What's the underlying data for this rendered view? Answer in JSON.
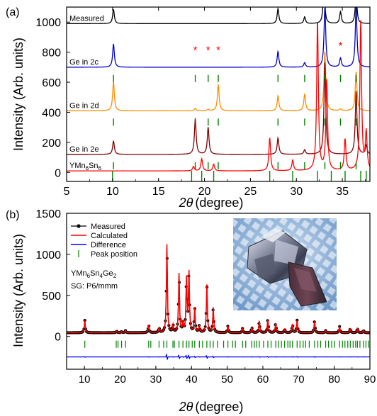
{
  "chart_data": [
    {
      "type": "line",
      "panel_label": "(a)",
      "xlabel": "2θ (degree)",
      "xlabel_symbol": "2θ",
      "xlabel_unit": "(degree)",
      "ylabel": "Intensity (Arb. units)",
      "xlim": [
        5,
        38
      ],
      "ylim": [
        -60,
        1100
      ],
      "x_ticks": [
        5,
        10,
        15,
        20,
        25,
        30,
        35
      ],
      "y_ticks": [
        0,
        200,
        400,
        600,
        800,
        1000
      ],
      "series": [
        {
          "name": "Measured",
          "color": "#000000",
          "offset": 990,
          "peaks": [
            [
              10.1,
              95
            ],
            [
              28.0,
              100
            ],
            [
              30.9,
              45
            ],
            [
              33.0,
              260
            ],
            [
              34.8,
              80
            ],
            [
              36.5,
              200
            ]
          ]
        },
        {
          "name": "Ge in 2c",
          "color": "#0000cc",
          "offset": 700,
          "peaks": [
            [
              10.1,
              155
            ],
            [
              28.0,
              105
            ],
            [
              30.9,
              30
            ],
            [
              33.1,
              400
            ],
            [
              34.8,
              60
            ],
            [
              36.5,
              400
            ]
          ],
          "ticks": [
            10.1,
            19.0,
            20.4,
            21.5,
            28.0,
            30.9,
            33.1,
            34.8,
            36.5
          ]
        },
        {
          "name": "Ge in 2d",
          "color": "#ff8c00",
          "offset": 410,
          "peaks": [
            [
              10.1,
              195
            ],
            [
              19.0,
              15
            ],
            [
              20.4,
              10
            ],
            [
              21.5,
              175
            ],
            [
              28.0,
              100
            ],
            [
              30.9,
              110
            ],
            [
              33.1,
              400
            ],
            [
              34.8,
              10
            ],
            [
              36.5,
              260
            ]
          ],
          "ticks": [
            10.1,
            19.0,
            20.4,
            21.5,
            28.0,
            30.9,
            33.1,
            34.8,
            36.5
          ]
        },
        {
          "name": "Ge in 2e",
          "color": "#800000",
          "offset": 120,
          "peaks": [
            [
              10.1,
              90
            ],
            [
              19.0,
              240
            ],
            [
              20.4,
              180
            ],
            [
              28.0,
              110
            ],
            [
              30.9,
              30
            ],
            [
              33.1,
              620
            ],
            [
              36.5,
              420
            ],
            [
              37.6,
              60
            ]
          ],
          "ticks": [
            10.1,
            19.0,
            20.4,
            21.5,
            28.0,
            30.9,
            33.1,
            34.8,
            36.5
          ]
        },
        {
          "name": "YMn₆Sn₆",
          "name_base": "YMn",
          "name_sub1": "6",
          "name_mid": "Sn",
          "name_sub2": "6",
          "color": "#ff0000",
          "offset": 10,
          "peaks": [
            [
              18.8,
              30
            ],
            [
              19.7,
              80
            ],
            [
              21.0,
              45
            ],
            [
              27.1,
              220
            ],
            [
              29.6,
              70
            ],
            [
              32.3,
              1000
            ],
            [
              33.3,
              600
            ],
            [
              35.3,
              210
            ],
            [
              37.0,
              1000
            ],
            [
              37.6,
              250
            ]
          ],
          "ticks": [
            10.0,
            18.6,
            19.7,
            21.0,
            27.1,
            29.6,
            32.3,
            33.8,
            35.3,
            37.0,
            37.6
          ]
        }
      ],
      "annotations": [
        {
          "text": "*",
          "x": 19.0,
          "y": 790,
          "color": "#ff0000"
        },
        {
          "text": "*",
          "x": 20.4,
          "y": 790,
          "color": "#ff0000"
        },
        {
          "text": "*",
          "x": 21.5,
          "y": 790,
          "color": "#ff0000"
        },
        {
          "text": "*",
          "x": 34.8,
          "y": 820,
          "color": "#ff0000"
        }
      ]
    },
    {
      "type": "scatter",
      "panel_label": "(b)",
      "xlabel": "2θ (degree)",
      "xlabel_symbol": "2θ",
      "xlabel_unit": "(degree)",
      "ylabel": "Intensity (Arb. units)",
      "xlim": [
        5,
        90
      ],
      "ylim": [
        -400,
        1500
      ],
      "x_ticks": [
        10,
        20,
        30,
        40,
        50,
        60,
        70,
        80,
        90
      ],
      "y_ticks": [
        0,
        500,
        1000,
        1500
      ],
      "legend": {
        "placement": "top-left",
        "entries": [
          "Measured",
          "Calculated",
          "Difference",
          "Peak position"
        ]
      },
      "compound": {
        "base": "YMn",
        "sub1": "6",
        "mid1": "Sn",
        "sub2": "4",
        "mid2": "Ge",
        "sub3": "2"
      },
      "space_group": "SG: P6/mmm",
      "background": 45,
      "difference_baseline": -250,
      "colors": {
        "measured": "#000000",
        "calculated": "#ff0000",
        "difference": "#0000ff",
        "peak_position": "#008000"
      },
      "peaks": [
        [
          10.1,
          150
        ],
        [
          19.0,
          20
        ],
        [
          20.4,
          15
        ],
        [
          21.5,
          25
        ],
        [
          28.0,
          95
        ],
        [
          30.9,
          55
        ],
        [
          33.1,
          1080
        ],
        [
          34.8,
          90
        ],
        [
          36.5,
          720
        ],
        [
          37.6,
          110
        ],
        [
          38.6,
          670
        ],
        [
          39.3,
          725
        ],
        [
          40.9,
          300
        ],
        [
          42.2,
          80
        ],
        [
          44.3,
          590
        ],
        [
          46.1,
          305
        ],
        [
          50.2,
          80
        ],
        [
          54.3,
          50
        ],
        [
          56.9,
          65
        ],
        [
          59.0,
          140
        ],
        [
          61.4,
          165
        ],
        [
          63.6,
          115
        ],
        [
          66.1,
          45
        ],
        [
          68.3,
          100
        ],
        [
          69.6,
          150
        ],
        [
          74.5,
          140
        ],
        [
          77.6,
          25
        ],
        [
          81.5,
          75
        ],
        [
          84.5,
          50
        ],
        [
          86.5,
          55
        ],
        [
          88.2,
          30
        ]
      ],
      "peak_positions": [
        10.1,
        18.9,
        19.4,
        20.4,
        21.5,
        28.0,
        28.6,
        30.9,
        32.2,
        33.1,
        34.8,
        35.2,
        36.5,
        37.6,
        38.6,
        39.3,
        40.2,
        40.9,
        42.2,
        43.1,
        44.3,
        45.2,
        46.1,
        47.3,
        49.0,
        50.2,
        51.5,
        52.3,
        54.3,
        55.2,
        56.9,
        57.6,
        58.3,
        59.0,
        60.2,
        61.4,
        62.3,
        63.6,
        64.3,
        65.2,
        66.1,
        67.0,
        67.6,
        68.3,
        69.6,
        70.4,
        71.3,
        72.0,
        73.0,
        74.5,
        75.4,
        76.2,
        77.6,
        78.4,
        79.3,
        80.1,
        81.5,
        82.3,
        83.0,
        83.8,
        84.5,
        85.3,
        86.0,
        86.5,
        87.2,
        88.2,
        88.9,
        89.6
      ]
    }
  ]
}
